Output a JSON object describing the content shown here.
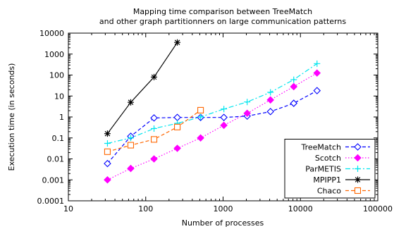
{
  "chart_data": {
    "type": "line",
    "title": "Mapping time comparison between TreeMatch",
    "subtitle": "and other graph partitionners on large communication patterns",
    "xlabel": "Number of processes",
    "ylabel": "Execution time (in seconds)",
    "xscale": "log",
    "yscale": "log",
    "xlim": [
      10,
      100000
    ],
    "ylim": [
      0.0001,
      10000
    ],
    "x_ticks": [
      10,
      100,
      1000,
      10000,
      100000
    ],
    "x_tick_labels": [
      "10",
      "100",
      "1000",
      "10000",
      "100000"
    ],
    "y_ticks": [
      0.0001,
      0.001,
      0.01,
      0.1,
      1,
      10,
      100,
      1000,
      10000
    ],
    "y_tick_labels": [
      "0.0001",
      "0.001",
      "0.01",
      "0.1",
      "1",
      "10",
      "100",
      "1000",
      "10000"
    ],
    "legend_position": "bottom-right",
    "grid": false,
    "series": [
      {
        "name": "TreeMatch",
        "color": "#0000ff",
        "marker": "diamond-open",
        "dash": "dashed",
        "points": [
          [
            32,
            0.006
          ],
          [
            64,
            0.12
          ],
          [
            128,
            0.9
          ],
          [
            256,
            0.95
          ],
          [
            512,
            0.95
          ],
          [
            1024,
            0.95
          ],
          [
            2048,
            1.1
          ],
          [
            4096,
            1.8
          ],
          [
            8192,
            4.5
          ],
          [
            16384,
            18
          ]
        ]
      },
      {
        "name": "Scotch",
        "color": "#ff00ff",
        "marker": "diamond-filled",
        "dash": "dotted",
        "points": [
          [
            32,
            0.001
          ],
          [
            64,
            0.0035
          ],
          [
            128,
            0.01
          ],
          [
            256,
            0.032
          ],
          [
            512,
            0.1
          ],
          [
            1024,
            0.4
          ],
          [
            2048,
            1.5
          ],
          [
            4096,
            6.5
          ],
          [
            8192,
            28
          ],
          [
            16384,
            125
          ]
        ]
      },
      {
        "name": "ParMETIS",
        "color": "#00e5ee",
        "marker": "plus",
        "dash": "dashdot",
        "points": [
          [
            32,
            0.055
          ],
          [
            64,
            0.1
          ],
          [
            128,
            0.28
          ],
          [
            256,
            0.5
          ],
          [
            512,
            1.0
          ],
          [
            1024,
            2.4
          ],
          [
            2048,
            5.2
          ],
          [
            4096,
            15
          ],
          [
            8192,
            60
          ],
          [
            16384,
            350
          ]
        ]
      },
      {
        "name": "MPIPP1",
        "color": "#000000",
        "marker": "asterisk",
        "dash": "solid",
        "points": [
          [
            32,
            0.16
          ],
          [
            64,
            5.0
          ],
          [
            128,
            80
          ],
          [
            256,
            3600
          ]
        ]
      },
      {
        "name": "Chaco",
        "color": "#ff6600",
        "marker": "square-open",
        "dash": "dashed",
        "points": [
          [
            32,
            0.022
          ],
          [
            64,
            0.045
          ],
          [
            128,
            0.085
          ],
          [
            256,
            0.33
          ],
          [
            512,
            2.1
          ]
        ]
      }
    ]
  }
}
